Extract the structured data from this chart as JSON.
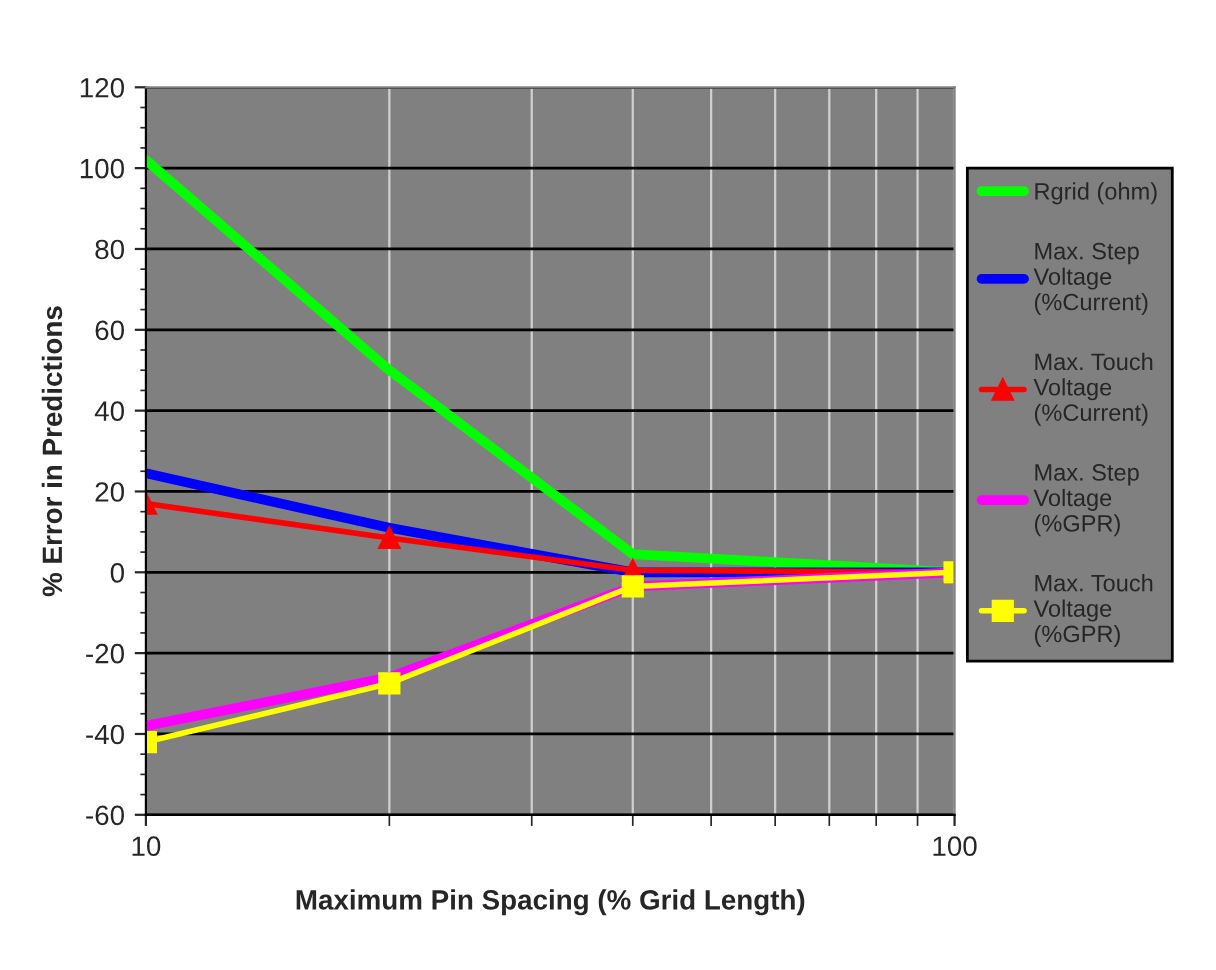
{
  "chart_data": {
    "type": "line",
    "xlabel": "Maximum Pin Spacing (% Grid Length)",
    "ylabel": "% Error in Predictions",
    "x": [
      10,
      20,
      40,
      100
    ],
    "log": "x",
    "xlim": [
      10,
      100
    ],
    "xticks": [
      10,
      100
    ],
    "ylim": [
      -60,
      120
    ],
    "yticks": [
      -60,
      -40,
      -20,
      0,
      20,
      40,
      60,
      80,
      100,
      120
    ],
    "grid": true,
    "legend": "right",
    "marker": "none",
    "series": [
      {
        "name": "Rgrid (ohm)",
        "color": "#00ff00",
        "values": [
          102,
          50,
          4.5,
          0
        ]
      },
      {
        "name": "Max. Step\nVoltage\n(%Current)",
        "color": "#0000ff",
        "values": [
          24.5,
          11,
          0,
          0
        ]
      },
      {
        "name": "Max. Touch\nVoltage\n(%Current)",
        "color": "#ff0000",
        "marker": "triangle",
        "values": [
          17,
          8.5,
          0.5,
          0
        ]
      },
      {
        "name": "Max. Step\nVoltage\n(%GPR)",
        "color": "#ff00ff",
        "values": [
          -38,
          -26,
          -3.5,
          0
        ]
      },
      {
        "name": "Max. Touch\nVoltage\n(%GPR)",
        "color": "#ffff00",
        "marker": "square",
        "values": [
          -42,
          -27.5,
          -3.5,
          0
        ]
      }
    ]
  }
}
